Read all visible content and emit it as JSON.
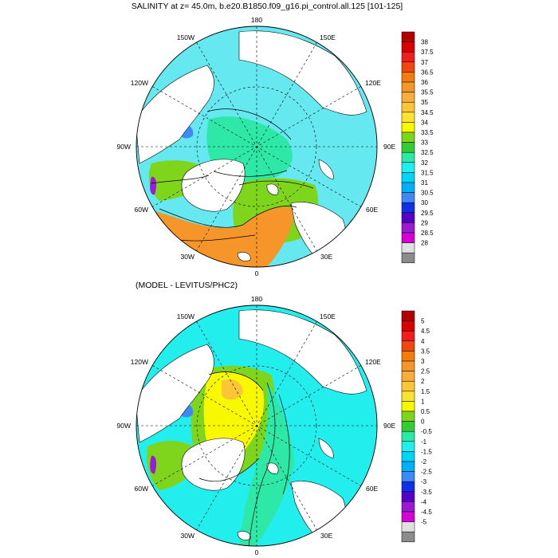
{
  "panels": [
    {
      "id": "salinity",
      "title": "SALINITY at z=  45.0m, b.e20.B1850.f09_g16.pi_control.all.125 [101-125]",
      "lon_labels": [
        "180",
        "150E",
        "120E",
        "90E",
        "60E",
        "30E",
        "0",
        "30W",
        "60W",
        "90W",
        "120W",
        "150W"
      ],
      "colorbar": {
        "labels": [
          "38",
          "37.5",
          "37",
          "36.5",
          "36",
          "35.5",
          "35",
          "34.5",
          "34",
          "33.5",
          "33",
          "32.5",
          "32",
          "31.5",
          "31",
          "30.5",
          "30",
          "29.5",
          "29",
          "28.5",
          "28"
        ],
        "colors": [
          "#b30000",
          "#d80000",
          "#f21d1d",
          "#f2460f",
          "#f47c0d",
          "#f6962a",
          "#f7ae3c",
          "#fac537",
          "#fae232",
          "#f8f800",
          "#7fd51c",
          "#33cc33",
          "#2ee8a8",
          "#22eeee",
          "#00d5f5",
          "#00b0f7",
          "#3d8af7",
          "#1030e8",
          "#5500c8",
          "#9b1bd5",
          "#d400d4",
          "#e0e0e0",
          "#8c8c8c"
        ]
      },
      "regions": {
        "background": "#66e8f0",
        "central": "#2ee8a8",
        "north_atlantic": "#f6962a",
        "barents": "#7fd51c",
        "labrador": "#7fd51c",
        "baffin_fresh": "#3d8af7",
        "purple_spot": "#9b1bd5"
      }
    },
    {
      "id": "difference",
      "title": "(MODEL - LEVITUS/PHC2)",
      "lon_labels": [
        "180",
        "150E",
        "120E",
        "90E",
        "60E",
        "30E",
        "0",
        "30W",
        "60W",
        "90W",
        "120W",
        "150W"
      ],
      "colorbar": {
        "labels": [
          "5",
          "4.5",
          "4",
          "3.5",
          "3",
          "2.5",
          "2",
          "1.5",
          "1",
          "0.5",
          "0",
          "-0.5",
          "-1",
          "-1.5",
          "-2",
          "-2.5",
          "-3",
          "-3.5",
          "-4",
          "-4.5",
          "-5"
        ],
        "colors": [
          "#b30000",
          "#d80000",
          "#f21d1d",
          "#f2460f",
          "#f47c0d",
          "#f6962a",
          "#f7ae3c",
          "#fac537",
          "#fae232",
          "#f8f800",
          "#7fd51c",
          "#33cc33",
          "#2ee8a8",
          "#22eeee",
          "#00d5f5",
          "#00b0f7",
          "#3d8af7",
          "#1030e8",
          "#5500c8",
          "#9b1bd5",
          "#d400d4",
          "#e0e0e0",
          "#8c8c8c"
        ]
      },
      "regions": {
        "background": "#22eeee",
        "beaufort_yellow": "#f8f800",
        "beaufort_core": "#fac537",
        "green_band": "#7fd51c",
        "atlantic_cyan": "#2ee8a8",
        "labrador": "#7fd51c",
        "baffin_fresh": "#3d8af7",
        "purple_spot": "#9b1bd5"
      }
    }
  ]
}
